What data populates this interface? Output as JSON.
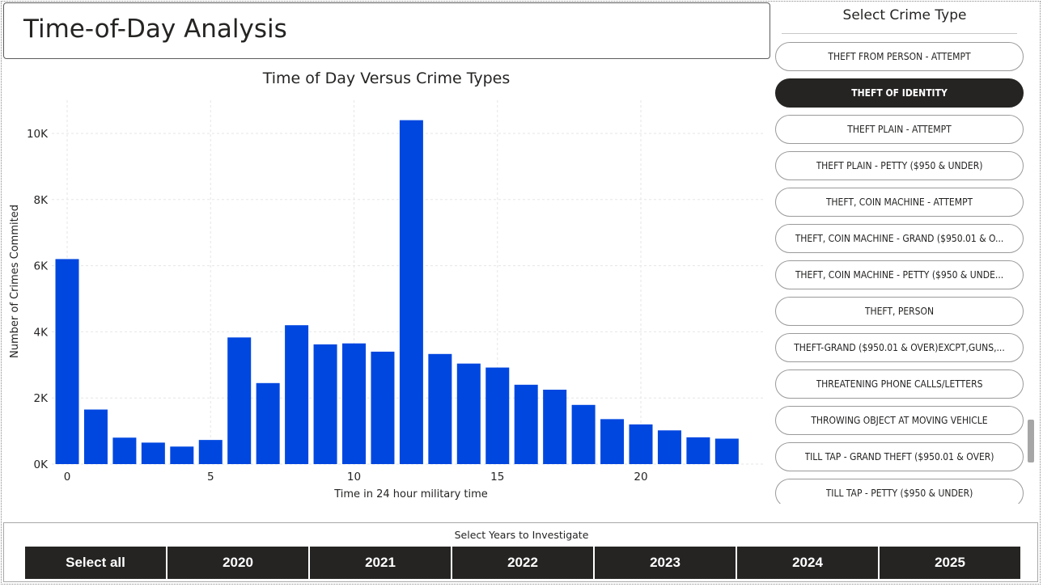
{
  "header": {
    "title": "Time-of-Day Analysis"
  },
  "slicer": {
    "title": "Select Crime Type",
    "items": [
      {
        "label": "THEFT FROM PERSON - ATTEMPT",
        "selected": false
      },
      {
        "label": "THEFT OF IDENTITY",
        "selected": true
      },
      {
        "label": "THEFT PLAIN - ATTEMPT",
        "selected": false
      },
      {
        "label": "THEFT PLAIN - PETTY ($950 & UNDER)",
        "selected": false
      },
      {
        "label": "THEFT, COIN MACHINE - ATTEMPT",
        "selected": false
      },
      {
        "label": "THEFT, COIN MACHINE - GRAND ($950.01 & O...",
        "selected": false
      },
      {
        "label": "THEFT, COIN MACHINE - PETTY ($950 & UNDE...",
        "selected": false
      },
      {
        "label": "THEFT, PERSON",
        "selected": false
      },
      {
        "label": "THEFT-GRAND ($950.01 & OVER)EXCPT,GUNS,...",
        "selected": false
      },
      {
        "label": "THREATENING PHONE CALLS/LETTERS",
        "selected": false
      },
      {
        "label": "THROWING OBJECT AT MOVING VEHICLE",
        "selected": false
      },
      {
        "label": "TILL TAP - GRAND THEFT ($950.01 & OVER)",
        "selected": false
      },
      {
        "label": "TILL TAP - PETTY ($950 & UNDER)",
        "selected": false
      }
    ]
  },
  "years": {
    "title": "Select Years to Investigate",
    "buttons": [
      "Select all",
      "2020",
      "2021",
      "2022",
      "2023",
      "2024",
      "2025"
    ]
  },
  "colors": {
    "bar": "#0047e0",
    "selected_pill": "#252423",
    "year_button": "#252423"
  },
  "chart_data": {
    "type": "bar",
    "title": "Time of Day Versus Crime Types",
    "xlabel": "Time in 24 hour military time",
    "ylabel": "Number of Crimes Commited",
    "x": [
      0,
      1,
      2,
      3,
      4,
      5,
      6,
      7,
      8,
      9,
      10,
      11,
      12,
      13,
      14,
      15,
      16,
      17,
      18,
      19,
      20,
      21,
      22,
      23
    ],
    "values": [
      6200,
      1650,
      800,
      650,
      530,
      730,
      3830,
      2450,
      4200,
      3620,
      3650,
      3400,
      10400,
      3330,
      3040,
      2920,
      2400,
      2250,
      1790,
      1360,
      1200,
      1020,
      810,
      770
    ],
    "x_ticks": [
      0,
      5,
      10,
      15,
      20
    ],
    "y_ticks": [
      0,
      2000,
      4000,
      6000,
      8000,
      10000
    ],
    "y_tick_labels": [
      "0K",
      "2K",
      "4K",
      "6K",
      "8K",
      "10K"
    ],
    "ylim": [
      0,
      11000
    ],
    "grid": true,
    "legend": "none"
  }
}
